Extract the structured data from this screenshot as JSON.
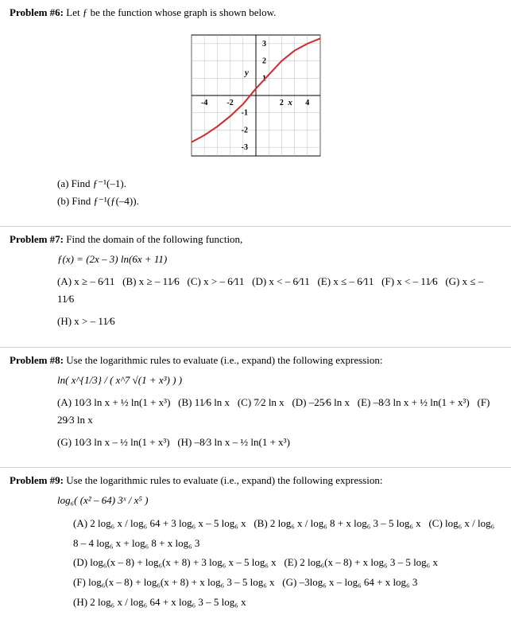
{
  "p6": {
    "title": "Problem #6:",
    "prompt": " Let ƒ be the function whose graph is shown below.",
    "chart": {
      "type": "line",
      "width": 190,
      "height": 180,
      "xlim": [
        -5,
        5
      ],
      "ylim": [
        -3.5,
        3.5
      ],
      "xticks": [
        -4,
        -2,
        2,
        4
      ],
      "yticks": [
        -3,
        -2,
        -1,
        1,
        2,
        3
      ],
      "grid_color": "#bdbdbd",
      "axis_color": "#000000",
      "line_color": "#d8262c",
      "line_width": 2,
      "background_color": "#ffffff",
      "y_label": "y",
      "x_label": "x",
      "points": [
        [
          -5,
          -2.7
        ],
        [
          -4,
          -2.3
        ],
        [
          -3,
          -1.8
        ],
        [
          -2,
          -1.2
        ],
        [
          -1,
          -0.5
        ],
        [
          0,
          0.4
        ],
        [
          1,
          1.2
        ],
        [
          2,
          2.0
        ],
        [
          3,
          2.6
        ],
        [
          4,
          3.0
        ],
        [
          5,
          3.3
        ]
      ]
    },
    "parts": {
      "a": "(a) Find ƒ⁻¹(–1).",
      "b": "(b) Find ƒ⁻¹(ƒ(–4))."
    }
  },
  "p7": {
    "title": "Problem #7:",
    "prompt": " Find the domain of the following function,",
    "func": "ƒ(x) = (2x – 3) ln(6x + 11)",
    "options": {
      "A": "(A) x ≥ – 6⁄11",
      "B": "(B) x ≥ – 11⁄6",
      "C": "(C) x > – 6⁄11",
      "D": "(D) x < – 6⁄11",
      "E": "(E) x ≤ – 6⁄11",
      "F": "(F) x < – 11⁄6",
      "G": "(G) x ≤ – 11⁄6",
      "H": "(H) x > – 11⁄6"
    }
  },
  "p8": {
    "title": "Problem #8:",
    "prompt": " Use the logarithmic rules to evaluate (i.e., expand) the following expression:",
    "expr": "ln( x^{1/3} / ( x^7 √(1 + x³) ) )",
    "options": {
      "A": "(A) 10⁄3 ln x + ½ ln(1 + x³)",
      "B": "(B) 11⁄6 ln x",
      "C": "(C) 7⁄2 ln x",
      "D": "(D) –25⁄6 ln x",
      "E": "(E) –8⁄3 ln x + ½ ln(1 + x³)",
      "F": "(F) 29⁄3 ln x",
      "G": "(G) 10⁄3 ln x – ½ ln(1 + x³)",
      "H": "(H) –8⁄3 ln x – ½ ln(1 + x³)"
    }
  },
  "p9": {
    "title": "Problem #9:",
    "prompt": " Use the logarithmic rules to evaluate (i.e., expand) the following expression:",
    "expr": "log₆( (x² – 64) 3ˣ / x⁵ )",
    "options": {
      "A": "(A) 2 log₆ x / log₆ 64 + 3 log₆ x – 5 log₆ x",
      "B": "(B) 2 log₆ x / log₆ 8 + x log₆ 3 – 5 log₆ x",
      "C": "(C) log₆ x / log₆ 8 – 4 log₆ x + log₆ 8 + x log₆ 3",
      "D": "(D) log₆(x – 8) + log₆(x + 8) + 3 log₆ x – 5 log₆ x",
      "E": "(E) 2 log₆(x – 8) + x log₆ 3 – 5 log₆ x",
      "F": "(F) log₆(x – 8) + log₆(x + 8) + x log₆ 3 – 5 log₆ x",
      "G": "(G) –3log₆ x – log₆ 64 + x log₆ 3",
      "H": "(H) 2 log₆ x / log₆ 64 + x log₆ 3 – 5 log₆ x"
    }
  }
}
